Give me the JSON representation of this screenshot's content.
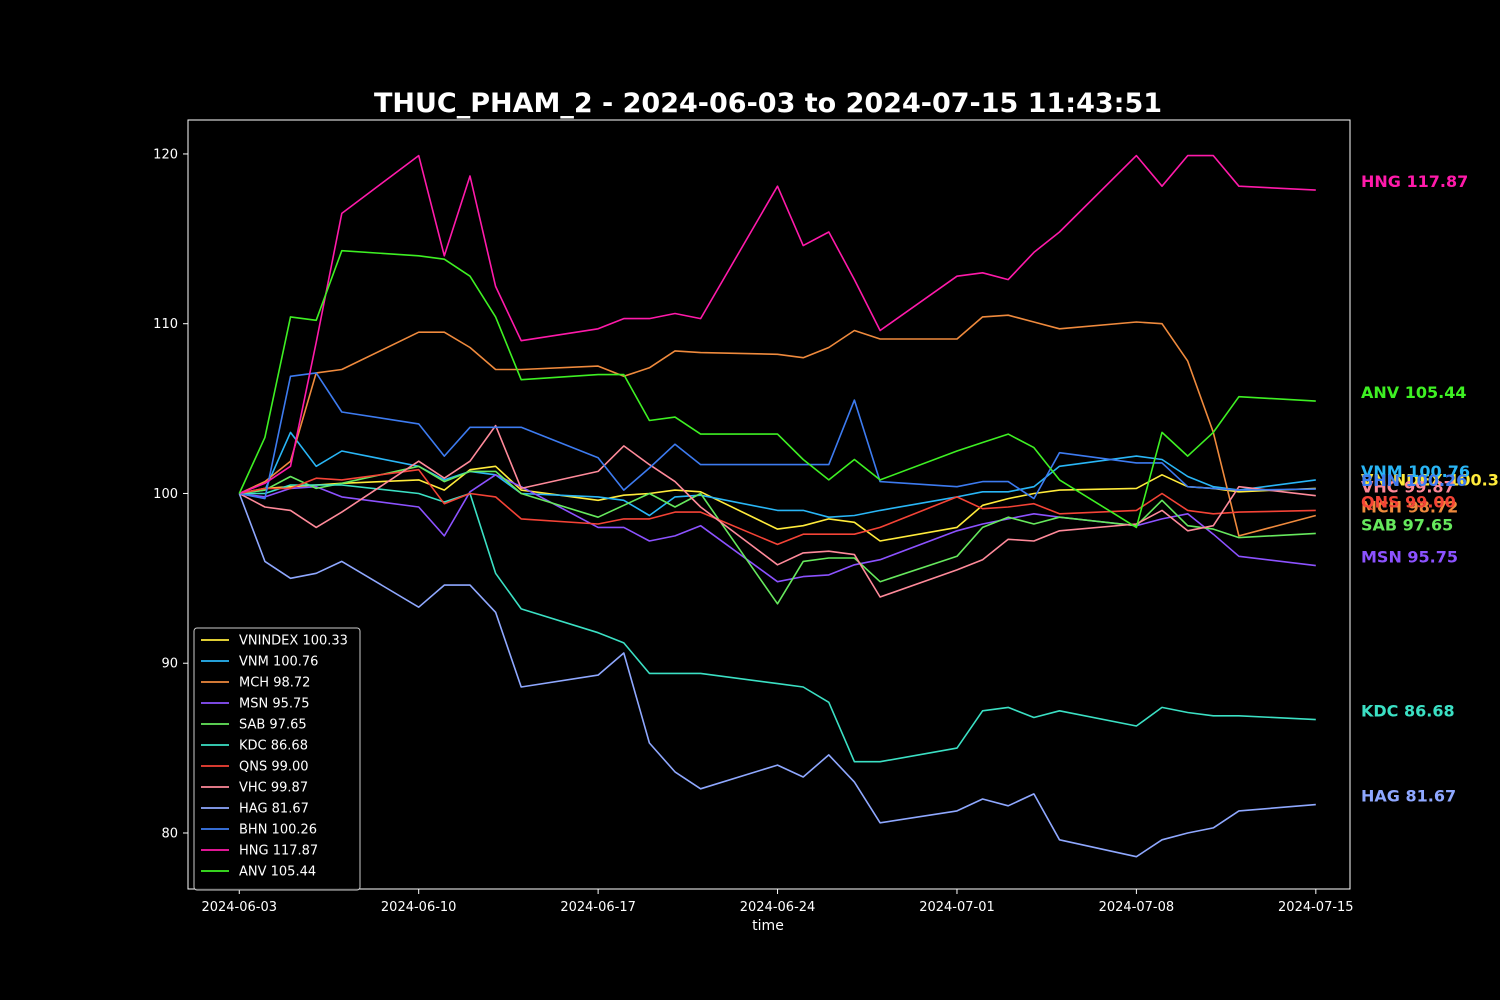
{
  "chart_data": {
    "type": "line",
    "title": "THUC_PHAM_2 - 2024-06-03 to 2024-07-15 11:43:51",
    "xlabel": "time",
    "ylabel": "",
    "ylim": [
      76.7,
      122.0
    ],
    "xlim": [
      "2024-06-01T00:00",
      "2024-07-16T08:00"
    ],
    "grid": false,
    "legend_position": "lower-left",
    "x_ticks": [
      "2024-06-03",
      "2024-06-10",
      "2024-06-17",
      "2024-06-24",
      "2024-07-01",
      "2024-07-08",
      "2024-07-15"
    ],
    "y_ticks": [
      80,
      90,
      100,
      110,
      120
    ],
    "x": [
      "2024-06-03",
      "2024-06-04",
      "2024-06-05",
      "2024-06-06",
      "2024-06-07",
      "2024-06-10",
      "2024-06-11",
      "2024-06-12",
      "2024-06-13",
      "2024-06-14",
      "2024-06-17",
      "2024-06-18",
      "2024-06-19",
      "2024-06-20",
      "2024-06-21",
      "2024-06-24",
      "2024-06-25",
      "2024-06-26",
      "2024-06-27",
      "2024-06-28",
      "2024-07-01",
      "2024-07-02",
      "2024-07-03",
      "2024-07-04",
      "2024-07-05",
      "2024-07-08",
      "2024-07-09",
      "2024-07-10",
      "2024-07-11",
      "2024-07-12",
      "2024-07-15"
    ],
    "series": [
      {
        "name": "VNINDEX",
        "label": "VNINDEX 100.33",
        "color": "#ffeb3b",
        "values": [
          100.0,
          100.3,
          100.4,
          100.5,
          100.6,
          100.8,
          100.2,
          101.4,
          101.6,
          100.2,
          99.6,
          99.9,
          100.0,
          100.2,
          100.1,
          97.9,
          98.1,
          98.5,
          98.3,
          97.2,
          98.0,
          99.3,
          99.7,
          100.0,
          100.2,
          100.3,
          101.1,
          100.4,
          100.3,
          100.1,
          100.3
        ]
      },
      {
        "name": "VNM",
        "label": "VNM 100.76",
        "color": "#29b6f6",
        "values": [
          100.0,
          100.2,
          103.6,
          101.6,
          102.5,
          101.6,
          100.8,
          101.3,
          101.1,
          100.0,
          99.8,
          99.6,
          98.7,
          99.8,
          99.9,
          99.0,
          99.0,
          98.6,
          98.7,
          99.0,
          99.8,
          100.1,
          100.1,
          100.4,
          101.6,
          102.2,
          102.0,
          101.0,
          100.4,
          100.2,
          100.8
        ]
      },
      {
        "name": "MCH",
        "label": "MCH 98.72",
        "color": "#ef8a3d",
        "values": [
          100.0,
          100.7,
          101.9,
          107.1,
          107.3,
          109.5,
          109.5,
          108.6,
          107.3,
          107.3,
          107.5,
          106.9,
          107.4,
          108.4,
          108.3,
          108.2,
          108.0,
          108.6,
          109.6,
          109.1,
          109.1,
          110.4,
          110.5,
          110.1,
          109.7,
          110.1,
          110.0,
          107.8,
          103.6,
          97.5,
          98.7
        ]
      },
      {
        "name": "MSN",
        "label": "MSN 95.75",
        "color": "#8c52ff",
        "values": [
          100.0,
          99.8,
          100.3,
          100.4,
          99.8,
          99.2,
          97.5,
          100.1,
          101.1,
          100.4,
          98.0,
          98.0,
          97.2,
          97.5,
          98.1,
          94.8,
          95.1,
          95.2,
          95.8,
          96.1,
          97.8,
          98.2,
          98.5,
          98.8,
          98.6,
          98.1,
          98.5,
          98.8,
          97.6,
          96.3,
          95.75
        ]
      },
      {
        "name": "SAB",
        "label": "SAB 97.65",
        "color": "#66e85d",
        "values": [
          100.0,
          100.2,
          101.0,
          100.3,
          100.6,
          101.6,
          100.7,
          101.3,
          101.3,
          100.0,
          98.6,
          99.3,
          100.0,
          99.2,
          100.0,
          93.5,
          96.0,
          96.2,
          96.2,
          94.8,
          96.3,
          98.0,
          98.6,
          98.2,
          98.6,
          98.1,
          99.6,
          98.1,
          97.9,
          97.4,
          97.65
        ]
      },
      {
        "name": "KDC",
        "label": "KDC 86.68",
        "color": "#3be0c4",
        "values": [
          100.0,
          100.0,
          100.5,
          100.5,
          100.5,
          100.0,
          99.5,
          100.0,
          95.3,
          93.2,
          91.8,
          91.2,
          89.4,
          89.4,
          89.4,
          88.8,
          88.6,
          87.7,
          84.2,
          84.2,
          85.0,
          87.2,
          87.4,
          86.8,
          87.2,
          86.3,
          87.4,
          87.1,
          86.9,
          86.9,
          86.68
        ]
      },
      {
        "name": "QNS",
        "label": "QNS 99.00",
        "color": "#f44336",
        "values": [
          100.0,
          100.3,
          100.3,
          100.9,
          100.8,
          101.4,
          99.4,
          100.0,
          99.8,
          98.5,
          98.2,
          98.5,
          98.5,
          98.9,
          98.9,
          97.0,
          97.6,
          97.6,
          97.6,
          98.0,
          99.8,
          99.1,
          99.2,
          99.4,
          98.8,
          99.0,
          100.0,
          99.0,
          98.8,
          98.9,
          99.0
        ]
      },
      {
        "name": "VHC",
        "label": "VHC 99.87",
        "color": "#ff8a9a",
        "values": [
          100.0,
          99.2,
          99.0,
          98.0,
          98.9,
          101.9,
          100.9,
          101.9,
          104.0,
          100.3,
          101.3,
          102.8,
          101.7,
          100.7,
          99.2,
          95.8,
          96.5,
          96.6,
          96.4,
          93.9,
          95.5,
          96.1,
          97.3,
          97.2,
          97.8,
          98.2,
          99.0,
          97.8,
          98.1,
          100.4,
          99.87
        ]
      },
      {
        "name": "HAG",
        "label": "HAG 81.67",
        "color": "#8fa8ff",
        "values": [
          100.0,
          96.0,
          95.0,
          95.3,
          96.0,
          93.3,
          94.6,
          94.6,
          93.0,
          88.6,
          89.3,
          90.6,
          85.3,
          83.6,
          82.6,
          84.0,
          83.3,
          84.6,
          83.0,
          80.6,
          81.3,
          82.0,
          81.6,
          82.3,
          79.6,
          78.6,
          79.6,
          80.0,
          80.3,
          81.3,
          81.67
        ]
      },
      {
        "name": "BHN",
        "label": "BHN 100.26",
        "color": "#3d7bf0",
        "values": [
          100.0,
          99.7,
          106.9,
          107.1,
          104.8,
          104.1,
          102.2,
          103.9,
          103.9,
          103.9,
          102.1,
          100.2,
          101.5,
          102.9,
          101.7,
          101.7,
          101.7,
          101.7,
          105.5,
          100.7,
          100.4,
          100.7,
          100.7,
          99.7,
          102.4,
          101.8,
          101.8,
          100.4,
          100.3,
          100.2,
          100.26
        ]
      },
      {
        "name": "HNG",
        "label": "HNG 117.87",
        "color": "#ff1aaa",
        "values": [
          100.0,
          100.6,
          101.6,
          108.9,
          116.5,
          119.9,
          114.0,
          118.7,
          112.2,
          109.0,
          109.7,
          110.3,
          110.3,
          110.6,
          110.3,
          118.1,
          114.6,
          115.4,
          112.6,
          109.6,
          112.8,
          113.0,
          112.6,
          114.2,
          115.4,
          119.9,
          118.1,
          119.9,
          119.9,
          118.1,
          117.87
        ]
      },
      {
        "name": "ANV",
        "label": "ANV 105.44",
        "color": "#3ef023",
        "values": [
          100.0,
          103.3,
          110.4,
          110.2,
          114.3,
          114.0,
          113.8,
          112.8,
          110.4,
          106.7,
          107.0,
          107.0,
          104.3,
          104.5,
          103.5,
          103.5,
          102.0,
          100.8,
          102.0,
          100.8,
          102.5,
          103.0,
          103.5,
          102.7,
          100.8,
          98.0,
          103.6,
          102.2,
          103.6,
          105.7,
          105.44
        ]
      }
    ]
  }
}
